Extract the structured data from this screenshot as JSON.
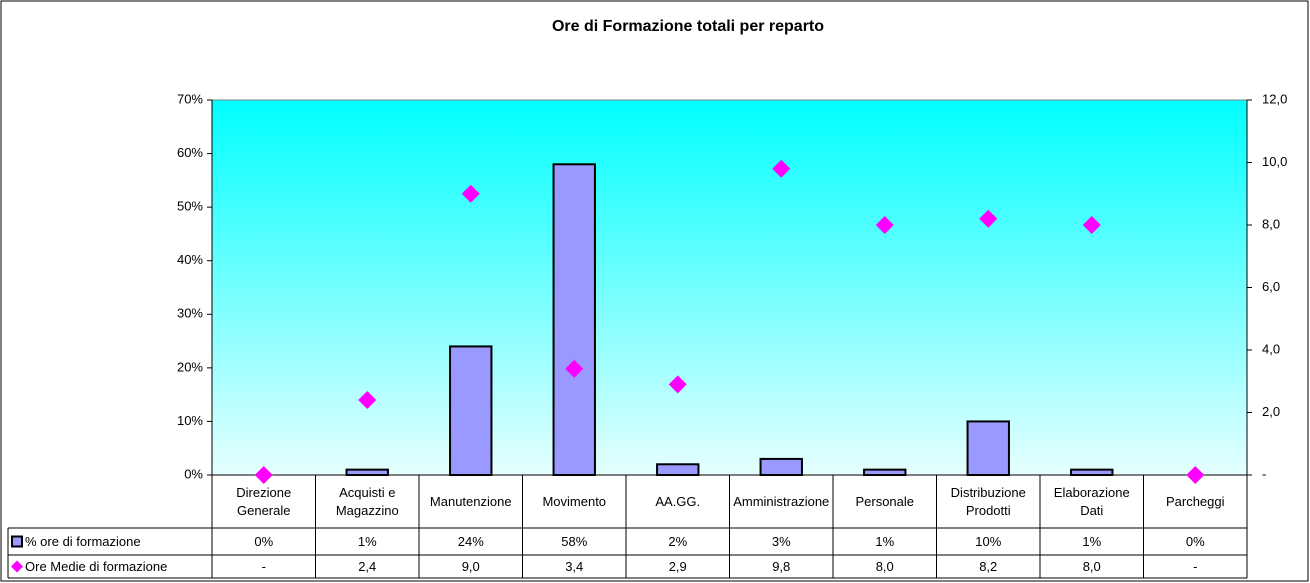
{
  "chart_data": {
    "type": "bar_line_table",
    "title": "Ore di Formazione totali per reparto",
    "categories": [
      "Direzione Generale",
      "Acquisti e Magazzino",
      "Manutenzione",
      "Movimento",
      "AA.GG.",
      "Amministrazione",
      "Personale",
      "Distribuzione Prodotti",
      "Elaborazione Dati",
      "Parcheggi"
    ],
    "series": [
      {
        "name": "% ore di formazione",
        "type": "bar",
        "color": "#9999ff",
        "axis": "y",
        "values": [
          0,
          1,
          24,
          58,
          2,
          3,
          1,
          10,
          1,
          0
        ],
        "value_labels": [
          "0%",
          "1%",
          "24%",
          "58%",
          "2%",
          "3%",
          "1%",
          "10%",
          "1%",
          "0%"
        ]
      },
      {
        "name": "Ore Medie di formazione",
        "type": "scatter",
        "color": "#ff00ff",
        "axis": "y2",
        "values": [
          0,
          2.4,
          9.0,
          3.4,
          2.9,
          9.8,
          8.0,
          8.2,
          8.0,
          0
        ],
        "value_labels": [
          "-",
          "2,4",
          "9,0",
          "3,4",
          "2,9",
          "9,8",
          "8,0",
          "8,2",
          "8,0",
          "-"
        ]
      }
    ],
    "ylim": [
      0,
      70
    ],
    "yticks": [
      {
        "value": 0,
        "label": "0%"
      },
      {
        "value": 10,
        "label": "10%"
      },
      {
        "value": 20,
        "label": "20%"
      },
      {
        "value": 30,
        "label": "30%"
      },
      {
        "value": 40,
        "label": "40%"
      },
      {
        "value": 50,
        "label": "50%"
      },
      {
        "value": 60,
        "label": "60%"
      },
      {
        "value": 70,
        "label": "70%"
      }
    ],
    "y2lim": [
      0,
      12
    ],
    "y2ticks": [
      {
        "value": 0,
        "label": "-"
      },
      {
        "value": 2,
        "label": "2,0"
      },
      {
        "value": 4,
        "label": "4,0"
      },
      {
        "value": 6,
        "label": "6,0"
      },
      {
        "value": 8,
        "label": "8,0"
      },
      {
        "value": 10,
        "label": "10,0"
      },
      {
        "value": 12,
        "label": "12,0"
      }
    ]
  }
}
